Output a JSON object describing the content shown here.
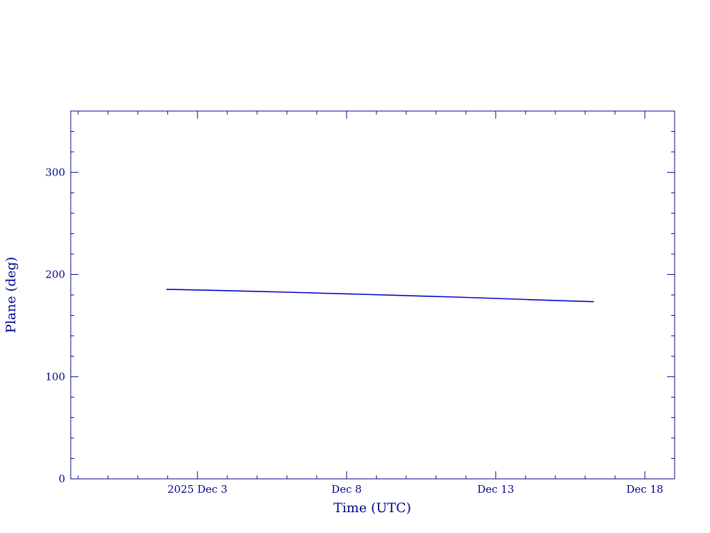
{
  "chart_data": {
    "type": "line",
    "xlabel": "Time (UTC)",
    "ylabel": "Plane (deg)",
    "xlim": [
      "2025-11-28T18:00",
      "2025-12-19T00:00"
    ],
    "ylim": [
      0,
      360
    ],
    "x_ticks": [
      {
        "date": "2025-12-03",
        "label": "2025 Dec  3"
      },
      {
        "date": "2025-12-08",
        "label": "Dec  8"
      },
      {
        "date": "2025-12-13",
        "label": "Dec 13"
      },
      {
        "date": "2025-12-18",
        "label": "Dec 18"
      }
    ],
    "y_ticks": [
      0,
      100,
      200,
      300
    ],
    "grid": false,
    "line_color": "#0000cc",
    "axis_color": "#00008b",
    "series": [
      {
        "x": [
          "2025-12-01T23:00",
          "2025-12-04T00:00",
          "2025-12-06T00:00",
          "2025-12-08T00:00",
          "2025-12-10T00:00",
          "2025-12-12T00:00",
          "2025-12-14T00:00",
          "2025-12-15T12:00",
          "2025-12-16T07:00"
        ],
        "y": [
          185.5,
          184.2,
          182.7,
          181.1,
          179.4,
          177.6,
          175.6,
          174.1,
          173.4
        ]
      }
    ]
  }
}
